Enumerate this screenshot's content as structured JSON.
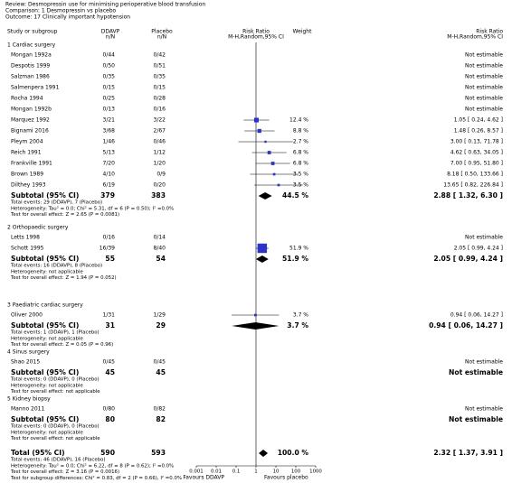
{
  "chart_data": {
    "type": "forest",
    "review": "Review:   Desmopressin use for minimising perioperative blood transfusion",
    "comparison": "Comparison:   1 Desmopressin vs placebo",
    "outcome": "Outcome:   17 Clinically important hypotension",
    "columns": {
      "study": "Study or subgroup",
      "treatment": "DDAVP",
      "treatment_sub": "n/N",
      "control": "Placebo",
      "control_sub": "n/N",
      "plot": "Risk Ratio",
      "plot_sub": "M-H,Random,95% CI",
      "weight": "Weight",
      "effect": "Risk Ratio",
      "effect_sub": "M-H,Random,95% CI"
    },
    "color": "#2a35c8",
    "log": true,
    "xlim": [
      0.001,
      1000
    ],
    "xticks": [
      0.001,
      0.01,
      0.1,
      1,
      10,
      100,
      1000
    ],
    "favours_left": "Favours DDAVP",
    "favours_right": "Favours placebo",
    "groups": [
      {
        "name": "1 Cardiac surgery",
        "studies": [
          {
            "name": "Mongan 1992a",
            "treatment": "0/44",
            "control": "0/42",
            "effect_label": "Not estimable"
          },
          {
            "name": "Despotis 1999",
            "treatment": "0/50",
            "control": "0/51",
            "effect_label": "Not estimable"
          },
          {
            "name": "Salzman 1986",
            "treatment": "0/35",
            "control": "0/35",
            "effect_label": "Not estimable"
          },
          {
            "name": "Salmenpera 1991",
            "treatment": "0/15",
            "control": "0/15",
            "effect_label": "Not estimable"
          },
          {
            "name": "Rocha 1994",
            "treatment": "0/25",
            "control": "0/28",
            "effect_label": "Not estimable"
          },
          {
            "name": "Mongan 1992b",
            "treatment": "0/13",
            "control": "0/16",
            "effect_label": "Not estimable"
          },
          {
            "name": "Marquez 1992",
            "treatment": "3/21",
            "control": "3/22",
            "weight": 12.4,
            "weight_label": "12.4 %",
            "rr": 1.05,
            "ci": [
              0.24,
              4.62
            ],
            "effect_label": "1.05 [ 0.24, 4.62 ]"
          },
          {
            "name": "Bignami 2016",
            "treatment": "3/68",
            "control": "2/67",
            "weight": 8.8,
            "weight_label": "8.8 %",
            "rr": 1.48,
            "ci": [
              0.26,
              8.57
            ],
            "effect_label": "1.48 [ 0.26, 8.57 ]"
          },
          {
            "name": "Pleym 2004",
            "treatment": "1/46",
            "control": "0/46",
            "weight": 2.7,
            "weight_label": "2.7 %",
            "rr": 3.0,
            "ci": [
              0.13,
              71.78
            ],
            "effect_label": "3.00 [ 0.13, 71.78 ]"
          },
          {
            "name": "Reich 1991",
            "treatment": "5/13",
            "control": "1/12",
            "weight": 6.8,
            "weight_label": "6.8 %",
            "rr": 4.62,
            "ci": [
              0.63,
              34.05
            ],
            "effect_label": "4.62 [ 0.63, 34.05 ]"
          },
          {
            "name": "Frankville 1991",
            "treatment": "7/20",
            "control": "1/20",
            "weight": 6.8,
            "weight_label": "6.8 %",
            "rr": 7.0,
            "ci": [
              0.95,
              51.8
            ],
            "effect_label": "7.00 [ 0.95, 51.80 ]"
          },
          {
            "name": "Brown 1989",
            "treatment": "4/10",
            "control": "0/9",
            "weight": 3.5,
            "weight_label": "3.5 %",
            "rr": 8.18,
            "ci": [
              0.5,
              133.66
            ],
            "effect_label": "8.18 [ 0.50, 133.66 ]"
          },
          {
            "name": "Dilthey 1993",
            "treatment": "6/19",
            "control": "0/20",
            "weight": 3.5,
            "weight_label": "3.5 %",
            "rr": 13.65,
            "ci": [
              0.82,
              226.84
            ],
            "effect_label": "13.65 [ 0.82, 226.84 ]"
          }
        ],
        "subtotal": {
          "label": "Subtotal (95% CI)",
          "treatment_n": 379,
          "control_n": 383,
          "weight_label": "44.5 %",
          "rr": 2.88,
          "ci": [
            1.32,
            6.3
          ],
          "effect_label": "2.88 [ 1.32, 6.30 ]"
        },
        "notes": [
          "Total events: 29 (DDAVP), 7 (Placebo)",
          "Heterogeneity: Tau² = 0.0; Chi² = 5.31, df = 6 (P = 0.50); I² =0.0%",
          "Test for overall effect: Z = 2.65 (P = 0.0081)"
        ]
      },
      {
        "name": "2 Orthopaedic surgery",
        "studies": [
          {
            "name": "Letts 1998",
            "treatment": "0/16",
            "control": "0/14",
            "effect_label": "Not estimable"
          },
          {
            "name": "Schott 1995",
            "treatment": "16/39",
            "control": "8/40",
            "weight": 51.9,
            "weight_label": "51.9 %",
            "rr": 2.05,
            "ci": [
              0.99,
              4.24
            ],
            "effect_label": "2.05 [ 0.99, 4.24 ]"
          }
        ],
        "subtotal": {
          "label": "Subtotal (95% CI)",
          "treatment_n": 55,
          "control_n": 54,
          "weight_label": "51.9 %",
          "rr": 2.05,
          "ci": [
            0.99,
            4.24
          ],
          "effect_label": "2.05 [ 0.99, 4.24 ]"
        },
        "notes": [
          "Total events: 16 (DDAVP), 8 (Placebo)",
          "Heterogeneity: not applicable",
          "Test for overall effect: Z = 1.94 (P = 0.052)"
        ]
      },
      {
        "name": "3 Paediatric cardiac surgery",
        "studies": [
          {
            "name": "Oliver 2000",
            "treatment": "1/31",
            "control": "1/29",
            "weight": 3.7,
            "weight_label": "3.7 %",
            "rr": 0.94,
            "ci": [
              0.06,
              14.27
            ],
            "effect_label": "0.94 [ 0.06, 14.27 ]"
          }
        ],
        "subtotal": {
          "label": "Subtotal (95% CI)",
          "treatment_n": 31,
          "control_n": 29,
          "weight_label": "3.7 %",
          "rr": 0.94,
          "ci": [
            0.06,
            14.27
          ],
          "effect_label": "0.94 [ 0.06, 14.27 ]"
        },
        "notes": [
          "Total events: 1 (DDAVP), 1 (Placebo)",
          "Heterogeneity: not applicable",
          "Test for overall effect: Z = 0.05 (P = 0.96)"
        ]
      },
      {
        "name": "4 Sinus surgery",
        "studies": [
          {
            "name": "Shao 2015",
            "treatment": "0/45",
            "control": "0/45",
            "effect_label": "Not estimable"
          }
        ],
        "subtotal": {
          "label": "Subtotal (95% CI)",
          "treatment_n": 45,
          "control_n": 45,
          "effect_label": "Not estimable"
        },
        "notes": [
          "Total events: 0 (DDAVP), 0 (Placebo)",
          "Heterogeneity: not applicable",
          "Test for overall effect: not applicable"
        ]
      },
      {
        "name": "5 Kidney biopsy",
        "studies": [
          {
            "name": "Manno 2011",
            "treatment": "0/80",
            "control": "0/82",
            "effect_label": "Not estimable"
          }
        ],
        "subtotal": {
          "label": "Subtotal (95% CI)",
          "treatment_n": 80,
          "control_n": 82,
          "effect_label": "Not estimable"
        },
        "notes": [
          "Total events: 0 (DDAVP), 0 (Placebo)",
          "Heterogeneity: not applicable",
          "Test for overall effect: not applicable"
        ]
      }
    ],
    "total": {
      "label": "Total (95% CI)",
      "treatment_n": 590,
      "control_n": 593,
      "weight_label": "100.0 %",
      "rr": 2.32,
      "ci": [
        1.37,
        3.91
      ],
      "effect_label": "2.32 [ 1.37, 3.91 ]",
      "notes": [
        "Total events: 46 (DDAVP), 16 (Placebo)",
        "Heterogeneity: Tau² = 0.0; Chi² = 6.22, df = 8 (P = 0.62); I² =0.0%",
        "Test for overall effect: Z = 3.16 (P = 0.0016)",
        "Test for subgroup differences: Chi² = 0.83, df = 2 (P = 0.66), I² =0.0%"
      ]
    }
  }
}
